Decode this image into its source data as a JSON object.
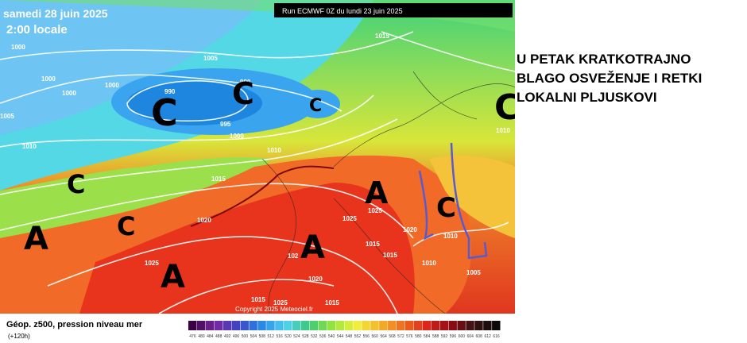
{
  "header": {
    "date": "samedi 28 juin 2025",
    "time": "2:00 locale",
    "run": "Run ECMWF 0Z du lundi 23 juin 2025"
  },
  "headline": [
    "U PETAK KRATKOTRAJNO",
    "BLAGO OSVEŽENJE I RETKI",
    "LOKALNI PLJUSKOVI"
  ],
  "centers": [
    "C",
    "C",
    "C",
    "C",
    "C",
    "C",
    "C",
    "A",
    "A",
    "A",
    "A"
  ],
  "isobar_labels": [
    "1000",
    "1005",
    "1000",
    "1000",
    "1000",
    "990",
    "990",
    "995",
    "1000",
    "1005",
    "1010",
    "1015",
    "1010",
    "1015",
    "1020",
    "1025",
    "1025",
    "1025",
    "1020",
    "1015",
    "1015",
    "102",
    "1020",
    "1010",
    "1010",
    "1005",
    "1015",
    "1025",
    "1015",
    "1010"
  ],
  "footer": {
    "field": "Géop. z500, pression niveau mer",
    "lead": "(+120h)",
    "copyright": "Copyright 2025 Meteociel.fr"
  },
  "scale": {
    "labels": [
      476,
      480,
      484,
      488,
      492,
      496,
      500,
      504,
      508,
      512,
      516,
      520,
      524,
      528,
      532,
      536,
      540,
      544,
      548,
      552,
      556,
      560,
      564,
      568,
      572,
      576,
      580,
      584,
      588,
      592,
      596,
      600,
      604,
      608,
      612,
      616
    ]
  }
}
